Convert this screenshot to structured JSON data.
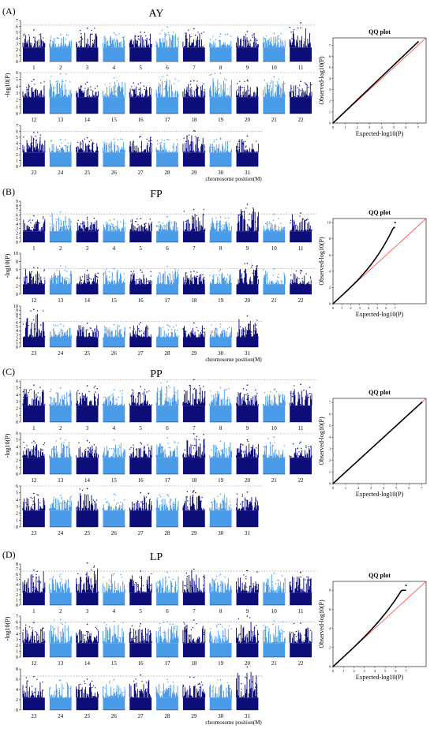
{
  "chart_data": [
    {
      "type": "scatter",
      "label": "(A)",
      "trait": "AY",
      "ylabel": "-log10(P)",
      "xlabel": "chromosome position(M)",
      "qq": {
        "title": "QQ plot",
        "xlabel": "Expected-log10(P)",
        "ylabel": "Observed-log10(P)",
        "max_observed": 7.3,
        "max_expected": 7.0,
        "inflation": 1.0
      },
      "rows": [
        {
          "chromosomes": [
            "1",
            "2",
            "3",
            "4",
            "5",
            "6",
            "7",
            "8",
            "9",
            "10",
            "11"
          ],
          "ymax": 7,
          "yticks": [
            0,
            1,
            2,
            3,
            4,
            5,
            6,
            7
          ],
          "threshold": 6.2,
          "peaks": [
            5.4,
            4.6,
            5.7,
            4.9,
            5.0,
            5.9,
            5.6,
            4.7,
            5.1,
            4.8,
            6.6
          ]
        },
        {
          "chromosomes": [
            "12",
            "13",
            "14",
            "15",
            "16",
            "17",
            "18",
            "19",
            "20",
            "21",
            "22"
          ],
          "ymax": 6,
          "yticks": [
            0,
            1,
            2,
            3,
            4,
            5,
            6
          ],
          "threshold": 6.0,
          "peaks": [
            5.0,
            5.8,
            4.6,
            5.2,
            4.5,
            5.6,
            4.8,
            5.9,
            4.9,
            5.4,
            4.7
          ]
        },
        {
          "chromosomes": [
            "23",
            "24",
            "25",
            "26",
            "27",
            "28",
            "29",
            "30",
            "31"
          ],
          "ymax": 7,
          "yticks": [
            0,
            1,
            2,
            3,
            4,
            5,
            6,
            7
          ],
          "threshold": 6.0,
          "peaks": [
            5.8,
            4.6,
            4.9,
            4.7,
            5.1,
            4.6,
            6.1,
            4.8,
            5.2
          ]
        }
      ]
    },
    {
      "type": "scatter",
      "label": "(B)",
      "trait": "FP",
      "ylabel": "-log10(P)",
      "xlabel": "chromosome position(M)",
      "qq": {
        "title": "QQ plot",
        "xlabel": "Expected-log10(P)",
        "ylabel": "Observed-log10(P)",
        "max_observed": 10.0,
        "max_expected": 7.0,
        "inflation": 1.4
      },
      "rows": [
        {
          "chromosomes": [
            "1",
            "2",
            "3",
            "4",
            "5",
            "6",
            "7",
            "8",
            "9",
            "10",
            "11"
          ],
          "ymax": 9,
          "yticks": [
            0,
            1,
            2,
            3,
            4,
            5,
            6,
            7,
            8,
            9
          ],
          "threshold": 6.2,
          "peaks": [
            5.8,
            6.6,
            5.4,
            5.0,
            5.2,
            5.6,
            7.2,
            5.5,
            8.3,
            6.1,
            6.4
          ]
        },
        {
          "chromosomes": [
            "12",
            "13",
            "14",
            "15",
            "16",
            "17",
            "18",
            "19",
            "20",
            "21",
            "22"
          ],
          "ymax": 10,
          "yticks": [
            0,
            2,
            4,
            6,
            8,
            10
          ],
          "threshold": 6.2,
          "peaks": [
            6.5,
            6.9,
            5.8,
            6.2,
            5.9,
            6.8,
            5.6,
            6.0,
            7.5,
            6.2,
            5.8
          ]
        },
        {
          "chromosomes": [
            "23",
            "24",
            "25",
            "26",
            "27",
            "28",
            "29",
            "30",
            "31"
          ],
          "ymax": 10,
          "yticks": [
            0,
            1,
            2,
            3,
            4,
            5,
            6,
            7,
            8,
            9,
            10
          ],
          "threshold": 6.2,
          "peaks": [
            9.2,
            5.6,
            5.8,
            5.5,
            6.0,
            5.4,
            5.9,
            5.6,
            7.6
          ]
        }
      ]
    },
    {
      "type": "scatter",
      "label": "(C)",
      "trait": "PP",
      "ylabel": "-log10(P)",
      "xlabel": "",
      "qq": {
        "title": "QQ plot",
        "xlabel": "Expected-log10(P)",
        "ylabel": "Observed-log10(P)",
        "max_observed": 7.0,
        "max_expected": 7.0,
        "inflation": 1.0
      },
      "rows": [
        {
          "chromosomes": [
            "1",
            "2",
            "3",
            "4",
            "5",
            "6",
            "7",
            "8",
            "9",
            "10",
            "11"
          ],
          "ymax": 6,
          "yticks": [
            0,
            1,
            2,
            3,
            4,
            5,
            6
          ],
          "threshold": 6.2,
          "peaks": [
            5.4,
            5.0,
            5.3,
            4.7,
            5.2,
            5.9,
            6.2,
            5.0,
            5.4,
            4.8,
            5.5
          ]
        },
        {
          "chromosomes": [
            "12",
            "13",
            "14",
            "15",
            "16",
            "17",
            "18",
            "19",
            "20",
            "21",
            "22"
          ],
          "ymax": 6,
          "yticks": [
            0,
            1,
            2,
            3,
            4,
            5,
            6
          ],
          "threshold": 5.9,
          "peaks": [
            4.8,
            5.2,
            4.9,
            5.0,
            4.6,
            5.3,
            5.9,
            4.8,
            5.0,
            5.4,
            4.7
          ]
        },
        {
          "chromosomes": [
            "23",
            "24",
            "25",
            "26",
            "27",
            "28",
            "29",
            "30",
            "31"
          ],
          "ymax": 6,
          "yticks": [
            0,
            1,
            2,
            3,
            4,
            5,
            6
          ],
          "threshold": 6.0,
          "peaks": [
            4.9,
            4.6,
            5.6,
            4.8,
            5.0,
            4.7,
            5.3,
            4.8,
            5.1
          ]
        }
      ]
    },
    {
      "type": "scatter",
      "label": "(D)",
      "trait": "LP",
      "ylabel": "-log10(P)",
      "xlabel": "chromosome position(M)",
      "qq": {
        "title": "QQ plot",
        "xlabel": "Expected-log10(P)",
        "ylabel": "Observed-log10(P)",
        "max_observed": 8.5,
        "max_expected": 7.0,
        "inflation": 1.25
      },
      "rows": [
        {
          "chromosomes": [
            "1",
            "2",
            "3",
            "4",
            "5",
            "6",
            "7",
            "8",
            "9",
            "10",
            "11"
          ],
          "ymax": 8,
          "yticks": [
            0,
            1,
            2,
            3,
            4,
            5,
            6,
            7,
            8
          ],
          "threshold": 6.6,
          "peaks": [
            6.8,
            6.0,
            8.2,
            6.1,
            6.6,
            6.4,
            7.0,
            6.0,
            6.7,
            6.2,
            6.4
          ]
        },
        {
          "chromosomes": [
            "12",
            "13",
            "14",
            "15",
            "16",
            "17",
            "18",
            "19",
            "20",
            "21",
            "22"
          ],
          "ymax": 7,
          "yticks": [
            0,
            1,
            2,
            3,
            4,
            5,
            6,
            7
          ],
          "threshold": 6.0,
          "peaks": [
            5.9,
            6.4,
            5.6,
            6.1,
            5.7,
            6.0,
            6.3,
            5.6,
            7.0,
            6.2,
            5.8
          ]
        },
        {
          "chromosomes": [
            "23",
            "24",
            "25",
            "26",
            "27",
            "28",
            "29",
            "30",
            "31"
          ],
          "ymax": 8,
          "yticks": [
            0,
            2,
            4,
            6,
            8
          ],
          "threshold": 6.6,
          "peaks": [
            6.5,
            5.8,
            6.0,
            5.9,
            6.8,
            6.0,
            6.4,
            5.9,
            8.4
          ]
        }
      ]
    }
  ],
  "colors": {
    "dark": "#0d0d7a",
    "light": "#4a9be8",
    "threshold": "#9a9a9a",
    "qq_points": "#000000",
    "qq_line": "#ff3b3b"
  }
}
